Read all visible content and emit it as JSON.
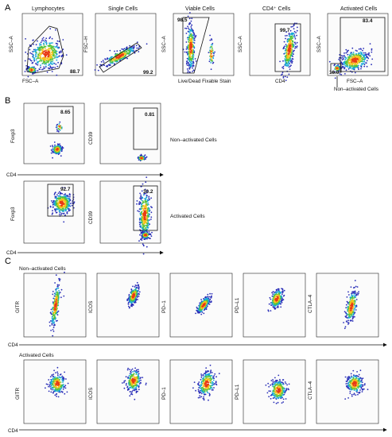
{
  "section_a": {
    "letter": "A",
    "plots": [
      {
        "title": "Lymphocytes",
        "xlabel": "FSC–A",
        "ylabel": "SSC–A",
        "value": "88.7"
      },
      {
        "title": "Single Cells",
        "xlabel": "",
        "ylabel": "FSC–H",
        "value": "99.2"
      },
      {
        "title": "Viable Cells",
        "xlabel": "Live/Dead Fixable Stain",
        "ylabel": "SSC–A",
        "value": "98.5"
      },
      {
        "title": "CD4⁺ Cells",
        "xlabel": "CD4",
        "ylabel": "SSC–A",
        "value": "99.7"
      },
      {
        "title": "Activated Cells",
        "xlabel": "FSC–A",
        "ylabel": "SSC–A",
        "value": "83.4",
        "value2": "16.0",
        "sublabel": "Non–activated Cells"
      }
    ]
  },
  "section_b": {
    "letter": "B",
    "row1": {
      "label": "Non–activated Cells",
      "foxp3_value": "8.65",
      "cd39_value": "0.81"
    },
    "row2": {
      "label": "Activated Cells",
      "foxp3_value": "92.7",
      "cd39_value": "30.2"
    },
    "ylabels": [
      "Foxp3",
      "CD39"
    ],
    "xlabel": "CD4"
  },
  "section_c": {
    "letter": "C",
    "row1_label": "Non–activated Cells",
    "row2_label": "Activated Cells",
    "markers": [
      "GITR",
      "ICOS",
      "PD–1",
      "PD–L1",
      "CTLA–4"
    ],
    "xlabel": "CD4"
  }
}
